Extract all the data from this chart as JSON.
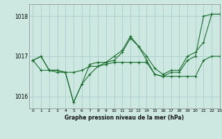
{
  "background_color": "#cce8e0",
  "grid_color": "#aacccc",
  "line_color": "#1a6e2e",
  "title": "Graphe pression niveau de la mer (hPa)",
  "xlim": [
    -0.5,
    23
  ],
  "ylim": [
    1015.7,
    1018.3
  ],
  "yticks": [
    1016,
    1017,
    1018
  ],
  "xticks": [
    0,
    1,
    2,
    3,
    4,
    5,
    6,
    7,
    8,
    9,
    10,
    11,
    12,
    13,
    14,
    15,
    16,
    17,
    18,
    19,
    20,
    21,
    22,
    23
  ],
  "series": [
    [
      1016.9,
      1017.0,
      1016.65,
      1016.65,
      1016.6,
      1015.85,
      1016.3,
      1016.55,
      1016.75,
      1016.85,
      1016.9,
      1017.1,
      1017.45,
      1017.25,
      1016.9,
      1016.55,
      1016.5,
      1016.6,
      1016.6,
      1016.9,
      1017.0,
      1018.0,
      1018.05,
      1018.05
    ],
    [
      1016.9,
      1016.65,
      1016.65,
      1016.65,
      1016.6,
      1016.6,
      1016.65,
      1016.75,
      1016.75,
      1016.8,
      1016.85,
      1016.85,
      1016.85,
      1016.85,
      1016.85,
      1016.55,
      1016.5,
      1016.5,
      1016.5,
      1016.5,
      1016.5,
      1016.9,
      1017.0,
      1017.0
    ],
    [
      1016.9,
      1017.0,
      1016.65,
      1016.6,
      1016.6,
      1015.85,
      1016.3,
      1016.8,
      1016.85,
      1016.85,
      1017.0,
      1017.15,
      1017.5,
      1017.25,
      1017.0,
      1016.7,
      1016.55,
      1016.65,
      1016.65,
      1017.0,
      1017.1,
      1017.35,
      1018.05,
      1018.05
    ]
  ],
  "figsize": [
    3.2,
    2.0
  ],
  "dpi": 100
}
